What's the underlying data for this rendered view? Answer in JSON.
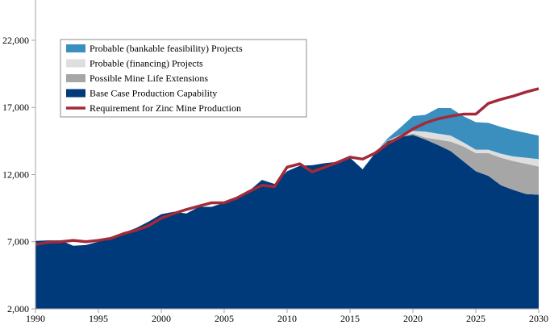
{
  "chart_data": {
    "type": "area",
    "title": "",
    "xlabel": "",
    "ylabel": "",
    "xlim": [
      1990,
      2030
    ],
    "ylim": [
      2000,
      25000
    ],
    "x_ticks": [
      "1990",
      "1995",
      "2000",
      "2005",
      "2010",
      "2015",
      "2020",
      "2025",
      "2030"
    ],
    "y_ticks": [
      "2,000",
      "7,000",
      "12,000",
      "17,000",
      "22,000"
    ],
    "grid": false,
    "legend_position": "top-left",
    "years": [
      1990,
      1991,
      1992,
      1993,
      1994,
      1995,
      1996,
      1997,
      1998,
      1999,
      2000,
      2001,
      2002,
      2003,
      2004,
      2005,
      2006,
      2007,
      2008,
      2009,
      2010,
      2011,
      2012,
      2013,
      2014,
      2015,
      2016,
      2017,
      2018,
      2019,
      2020,
      2021,
      2022,
      2023,
      2024,
      2025,
      2026,
      2027,
      2028,
      2029,
      2030
    ],
    "stacked_series": [
      {
        "name": "Base Case Production Capability",
        "color": "#003A7A",
        "values": [
          7060,
          7100,
          7100,
          6700,
          6750,
          7000,
          7240,
          7660,
          8020,
          8500,
          9050,
          9230,
          9100,
          9600,
          9600,
          9900,
          10250,
          10800,
          11600,
          11300,
          12250,
          12650,
          12700,
          12850,
          12950,
          13250,
          12400,
          13600,
          14500,
          14800,
          14950,
          14600,
          14200,
          13750,
          13000,
          12250,
          11900,
          11200,
          10850,
          10550,
          10500
        ]
      },
      {
        "name": "Possible Mine Life Extensions",
        "color": "#A6A6A6",
        "values": [
          0,
          0,
          0,
          0,
          0,
          0,
          0,
          0,
          0,
          0,
          0,
          0,
          0,
          0,
          0,
          0,
          0,
          0,
          0,
          0,
          0,
          0,
          0,
          0,
          0,
          0,
          0,
          0,
          0,
          50,
          100,
          150,
          400,
          700,
          1100,
          1350,
          1700,
          2050,
          2150,
          2250,
          2100
        ]
      },
      {
        "name": "Probable (financing) Projects",
        "color": "#DEDEDE",
        "values": [
          0,
          0,
          0,
          0,
          0,
          0,
          0,
          0,
          0,
          0,
          0,
          0,
          0,
          0,
          0,
          0,
          0,
          0,
          0,
          0,
          0,
          0,
          0,
          0,
          0,
          0,
          0,
          0,
          50,
          100,
          200,
          450,
          450,
          450,
          300,
          250,
          250,
          300,
          350,
          450,
          550
        ]
      },
      {
        "name": "Probable (bankable feasibility) Projects",
        "color": "#3A8FBF",
        "values": [
          0,
          0,
          0,
          0,
          0,
          0,
          0,
          0,
          0,
          0,
          0,
          0,
          0,
          0,
          0,
          0,
          0,
          0,
          0,
          0,
          0,
          0,
          0,
          0,
          0,
          0,
          0,
          0,
          150,
          550,
          1100,
          1250,
          1900,
          2050,
          1950,
          2050,
          2000,
          2000,
          1950,
          1850,
          1750
        ]
      }
    ],
    "line_series": {
      "name": "Requirement for Zinc Mine Production",
      "color": "#A32A38",
      "values": [
        6800,
        6950,
        7000,
        7100,
        7000,
        7100,
        7250,
        7600,
        7850,
        8200,
        8750,
        9100,
        9400,
        9650,
        9900,
        9900,
        10250,
        10750,
        11200,
        11100,
        12550,
        12800,
        12200,
        12550,
        12900,
        13300,
        13150,
        13600,
        14300,
        14800,
        15400,
        15850,
        16150,
        16350,
        16500,
        16500,
        17300,
        17600,
        17850,
        18150,
        18400
      ]
    },
    "legend": [
      {
        "label": "Probable (bankable feasibility) Projects",
        "color": "#3A8FBF",
        "kind": "box"
      },
      {
        "label": "Probable (financing) Projects",
        "color": "#DEDEDE",
        "kind": "box"
      },
      {
        "label": "Possible Mine Life Extensions",
        "color": "#A6A6A6",
        "kind": "box"
      },
      {
        "label": "Base Case Production Capability",
        "color": "#003A7A",
        "kind": "box"
      },
      {
        "label": "Requirement for Zinc Mine Production",
        "color": "#A32A38",
        "kind": "line"
      }
    ]
  }
}
